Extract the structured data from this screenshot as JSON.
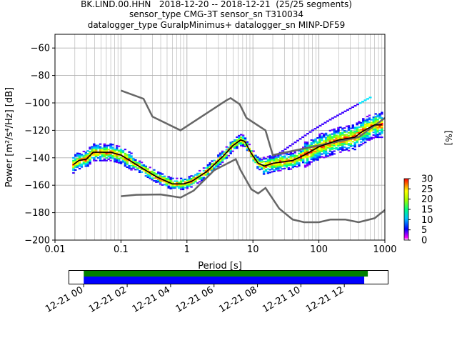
{
  "title_lines": [
    "BK.LIND.00.HHN   2018-12-20 -- 2018-12-21  (25/25 segments)",
    "sensor_type CMG-3T sensor_sn T310034",
    "datalogger_type GuralpMinimus+ datalogger_sn MINP-DF59"
  ],
  "chart_data": [
    {
      "type": "heatmap",
      "name": "ppsd",
      "xlabel": "Period [s]",
      "ylabel": "Power [m²/s⁴/Hz] [dB]",
      "xscale": "log",
      "xlim": [
        0.01,
        1000
      ],
      "ylim": [
        -200,
        -50
      ],
      "xticks": [
        0.01,
        0.1,
        1,
        10,
        100,
        1000
      ],
      "xtick_labels": [
        "0.01",
        "0.1",
        "1",
        "10",
        "100",
        "1000"
      ],
      "yticks": [
        -200,
        -180,
        -160,
        -140,
        -120,
        -100,
        -80,
        -60
      ],
      "ytick_labels": [
        "−200",
        "−180",
        "−160",
        "−140",
        "−120",
        "−100",
        "−80",
        "−60"
      ],
      "grid": true,
      "noise_models": {
        "high": [
          [
            0.1,
            -91
          ],
          [
            0.22,
            -97
          ],
          [
            0.3,
            -110
          ],
          [
            0.8,
            -120
          ],
          [
            4.0,
            -98
          ],
          [
            4.6,
            -96.5
          ],
          [
            6.3,
            -101
          ],
          [
            8.0,
            -111
          ],
          [
            15.5,
            -120
          ],
          [
            20,
            -138
          ],
          [
            100,
            -131
          ],
          [
            400,
            -125
          ],
          [
            1000,
            -111
          ]
        ],
        "low": [
          [
            0.1,
            -168
          ],
          [
            0.17,
            -167
          ],
          [
            0.4,
            -166.7
          ],
          [
            0.8,
            -169
          ],
          [
            1.26,
            -164
          ],
          [
            2.6,
            -149
          ],
          [
            5.5,
            -141
          ],
          [
            6.5,
            -149
          ],
          [
            9.5,
            -163
          ],
          [
            12,
            -166
          ],
          [
            15.5,
            -162
          ],
          [
            25,
            -177
          ],
          [
            40,
            -185
          ],
          [
            60,
            -187
          ],
          [
            100,
            -187
          ],
          [
            150,
            -185
          ],
          [
            250,
            -185
          ],
          [
            400,
            -187
          ],
          [
            700,
            -184
          ],
          [
            1000,
            -178
          ]
        ]
      },
      "mean": [
        [
          0.019,
          -145
        ],
        [
          0.023,
          -142
        ],
        [
          0.03,
          -141
        ],
        [
          0.038,
          -136
        ],
        [
          0.05,
          -136
        ],
        [
          0.07,
          -136
        ],
        [
          0.1,
          -138
        ],
        [
          0.2,
          -147
        ],
        [
          0.35,
          -154
        ],
        [
          0.6,
          -159
        ],
        [
          0.9,
          -159
        ],
        [
          1.2,
          -157
        ],
        [
          2,
          -150
        ],
        [
          3.5,
          -139
        ],
        [
          5,
          -131
        ],
        [
          6.5,
          -127
        ],
        [
          7.5,
          -128
        ],
        [
          9.5,
          -137
        ],
        [
          12,
          -144
        ],
        [
          15,
          -146
        ],
        [
          20,
          -144
        ],
        [
          40,
          -142
        ],
        [
          60,
          -138
        ],
        [
          100,
          -132
        ],
        [
          200,
          -127
        ],
        [
          350,
          -125
        ],
        [
          450,
          -121
        ],
        [
          700,
          -116
        ],
        [
          900,
          -116
        ]
      ],
      "colorbar": {
        "label": "[%]",
        "min": 0,
        "max": 30,
        "ticks": [
          0,
          5,
          10,
          15,
          20,
          25,
          30
        ],
        "tick_labels": [
          "0",
          "5",
          "10",
          "15",
          "20",
          "25",
          "30"
        ]
      }
    },
    {
      "type": "bar",
      "name": "data-coverage",
      "xlim": [
        "2018-12-20T23:20",
        "2018-12-21T14:00"
      ],
      "xtick_labels": [
        "12-21 00",
        "12-21 02",
        "12-21 04",
        "12-21 06",
        "12-21 08",
        "12-21 10",
        "12-21 12"
      ],
      "xticks": [
        "2018-12-21T00:00",
        "2018-12-21T02:00",
        "2018-12-21T04:00",
        "2018-12-21T06:00",
        "2018-12-21T08:00",
        "2018-12-21T10:00",
        "2018-12-21T12:00"
      ],
      "series": [
        {
          "color": "#008000",
          "start": "2018-12-21T00:00",
          "end": "2018-12-21T13:05"
        },
        {
          "color": "#0000ff",
          "start": "2018-12-21T00:00",
          "end": "2018-12-21T12:55"
        }
      ]
    }
  ],
  "colors": {
    "noise_model": "#666666",
    "mean": "#000000",
    "grid": "#b0b0b0"
  }
}
